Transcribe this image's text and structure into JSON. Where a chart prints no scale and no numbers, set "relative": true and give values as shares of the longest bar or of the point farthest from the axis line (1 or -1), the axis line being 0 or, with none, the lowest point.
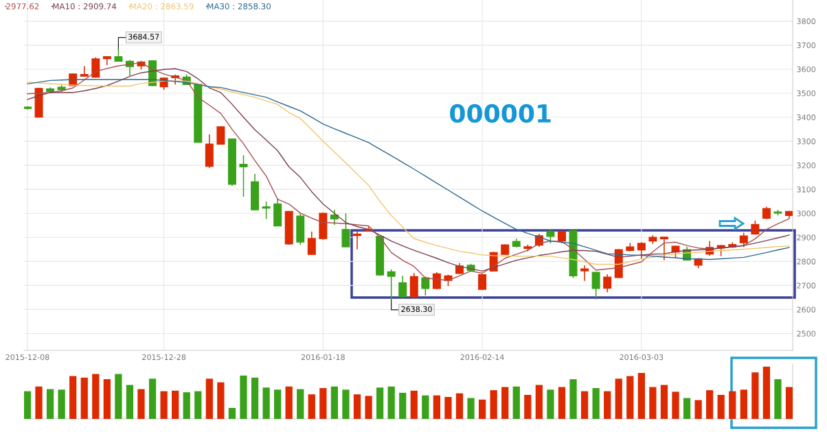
{
  "chart_data": [
    {
      "type": "candlestick",
      "categories": [
        "2015-12-08",
        null,
        null,
        null,
        null,
        null,
        null,
        null,
        null,
        null,
        null,
        null,
        "2015-12-28",
        null,
        null,
        null,
        null,
        null,
        null,
        null,
        null,
        null,
        null,
        null,
        null,
        null,
        "2016-01-18",
        null,
        null,
        null,
        null,
        null,
        null,
        null,
        null,
        null,
        null,
        null,
        null,
        null,
        "2016-02-14",
        null,
        null,
        null,
        null,
        null,
        null,
        null,
        null,
        null,
        null,
        null,
        null,
        null,
        "2016-03-03",
        null,
        null,
        null,
        null,
        null,
        null,
        null,
        null,
        null,
        null,
        null,
        null,
        null
      ],
      "ohlc": [
        [
          3442,
          3446,
          3432,
          3436
        ],
        [
          3401,
          3522,
          3399,
          3520
        ],
        [
          3518,
          3524,
          3500,
          3508
        ],
        [
          3525,
          3534,
          3506,
          3515
        ],
        [
          3532,
          3582,
          3530,
          3580
        ],
        [
          3571,
          3613,
          3570,
          3578
        ],
        [
          3567,
          3649,
          3565,
          3643
        ],
        [
          3644,
          3653,
          3617,
          3652
        ],
        [
          3652,
          3684.57,
          3631,
          3633
        ],
        [
          3633,
          3638,
          3572,
          3611
        ],
        [
          3614,
          3635,
          3599,
          3630
        ],
        [
          3635,
          3637,
          3530,
          3532
        ],
        [
          3527,
          3565,
          3514,
          3563
        ],
        [
          3565,
          3578,
          3536,
          3572
        ],
        [
          3567,
          3578,
          3535,
          3536
        ],
        [
          3538,
          3540,
          3295,
          3296
        ],
        [
          3196,
          3329,
          3189,
          3288
        ],
        [
          3288,
          3362,
          3287,
          3360
        ],
        [
          3310,
          3312,
          3115,
          3121
        ],
        [
          3204,
          3242,
          3069,
          3194
        ],
        [
          3131,
          3165,
          3014,
          3015
        ],
        [
          3027,
          3049,
          2977,
          3022
        ],
        [
          3039,
          3061,
          2947,
          2948
        ],
        [
          2873,
          3010,
          2870,
          3008
        ],
        [
          2989,
          3002,
          2870,
          2881
        ],
        [
          2829,
          2924,
          2827,
          2895
        ],
        [
          2895,
          3003,
          2890,
          3000
        ],
        [
          2993,
          3015,
          2952,
          2977
        ],
        [
          2933,
          3000,
          2860,
          2861
        ],
        [
          2908,
          2925,
          2850,
          2914
        ],
        [
          2929,
          2945,
          2926,
          2934
        ],
        [
          2904,
          2906,
          2740,
          2744
        ],
        [
          2757,
          2767,
          2638.3,
          2738
        ],
        [
          2711,
          2740,
          2650,
          2653
        ],
        [
          2652,
          2752,
          2650,
          2737
        ],
        [
          2732,
          2737,
          2658,
          2687
        ],
        [
          2687,
          2755,
          2685,
          2748
        ],
        [
          2721,
          2745,
          2697,
          2740
        ],
        [
          2750,
          2793,
          2748,
          2781
        ],
        [
          2784,
          2790,
          2760,
          2762
        ],
        [
          2684,
          2748,
          2682,
          2745
        ],
        [
          2760,
          2840,
          2758,
          2837
        ],
        [
          2829,
          2871,
          2827,
          2869
        ],
        [
          2883,
          2895,
          2858,
          2863
        ],
        [
          2854,
          2870,
          2842,
          2861
        ],
        [
          2868,
          2915,
          2861,
          2907
        ],
        [
          2925,
          2932,
          2875,
          2904
        ],
        [
          2885,
          2935,
          2875,
          2924
        ],
        [
          2928,
          2930,
          2731,
          2740
        ],
        [
          2761,
          2784,
          2719,
          2769
        ],
        [
          2755,
          2757,
          2642,
          2687
        ],
        [
          2689,
          2747,
          2671,
          2735
        ],
        [
          2733,
          2851,
          2731,
          2849
        ],
        [
          2846,
          2877,
          2842,
          2860
        ],
        [
          2848,
          2880,
          2810,
          2875
        ],
        [
          2885,
          2909,
          2873,
          2900
        ],
        [
          2894,
          2903,
          2805,
          2901
        ],
        [
          2839,
          2866,
          2815,
          2863
        ],
        [
          2849,
          2861,
          2803,
          2806
        ],
        [
          2784,
          2813,
          2772,
          2811
        ],
        [
          2831,
          2885,
          2824,
          2858
        ],
        [
          2856,
          2868,
          2822,
          2866
        ],
        [
          2860,
          2880,
          2856,
          2870
        ],
        [
          2878,
          2919,
          2860,
          2906
        ],
        [
          2914,
          2970,
          2912,
          2954
        ],
        [
          2980,
          3028,
          2976,
          3020
        ],
        [
          3006,
          3015,
          2991,
          3001
        ],
        [
          2991,
          3010,
          2980,
          3008
        ]
      ],
      "colors": [
        "#3aa21a",
        "#dd2a00",
        "#3aa21a",
        "#3aa21a",
        "#dd2a00",
        "#dd2a00",
        "#dd2a00",
        "#dd2a00",
        "#3aa21a",
        "#3aa21a",
        "#dd2a00",
        "#3aa21a",
        "#dd2a00",
        "#dd2a00",
        "#3aa21a",
        "#3aa21a",
        "#dd2a00",
        "#dd2a00",
        "#3aa21a",
        "#3aa21a",
        "#3aa21a",
        "#3aa21a",
        "#3aa21a",
        "#dd2a00",
        "#3aa21a",
        "#dd2a00",
        "#dd2a00",
        "#3aa21a",
        "#3aa21a",
        "#dd2a00",
        "#dd2a00",
        "#3aa21a",
        "#3aa21a",
        "#3aa21a",
        "#dd2a00",
        "#3aa21a",
        "#dd2a00",
        "#dd2a00",
        "#dd2a00",
        "#3aa21a",
        "#dd2a00",
        "#dd2a00",
        "#dd2a00",
        "#3aa21a",
        "#dd2a00",
        "#dd2a00",
        "#3aa21a",
        "#dd2a00",
        "#3aa21a",
        "#dd2a00",
        "#3aa21a",
        "#dd2a00",
        "#dd2a00",
        "#dd2a00",
        "#dd2a00",
        "#dd2a00",
        "#dd2a00",
        "#dd2a00",
        "#3aa21a",
        "#dd2a00",
        "#dd2a00",
        "#dd2a00",
        "#dd2a00",
        "#dd2a00",
        "#dd2a00",
        "#dd2a00",
        "#3aa21a",
        "#dd2a00"
      ],
      "series": [
        {
          "type": "line",
          "name": "2977.62",
          "color": "#a8504e",
          "values": [
            3498,
            3500,
            3503,
            3510,
            3522,
            3555,
            3590,
            3603,
            3614,
            3620,
            3628,
            3599,
            3580,
            3566,
            3553,
            3483,
            3450,
            3416,
            3350,
            3290,
            3220,
            3155,
            3059,
            3039,
            3001,
            2980,
            2962,
            2960,
            2957,
            2952,
            2948,
            2900,
            2837,
            2805,
            2779,
            2731,
            2726,
            2721,
            2740,
            2760,
            2751,
            2780,
            2813,
            2830,
            2846,
            2875,
            2885,
            2882,
            2851,
            2808,
            2764,
            2769,
            2774,
            2786,
            2798,
            2840,
            2877,
            2880,
            2866,
            2856,
            2851,
            2856,
            2861,
            2866,
            2894,
            2933,
            2957,
            2978
          ]
        },
        {
          "type": "line",
          "name": "MA10 : 2909.74",
          "color": "#7b3f52",
          "values": [
            3474,
            3490,
            3503,
            3503,
            3503,
            3510,
            3520,
            3532,
            3550,
            3570,
            3585,
            3592,
            3599,
            3602,
            3590,
            3560,
            3522,
            3503,
            3454,
            3400,
            3348,
            3305,
            3261,
            3194,
            3150,
            3090,
            3039,
            3000,
            2962,
            2945,
            2933,
            2910,
            2885,
            2865,
            2846,
            2830,
            2813,
            2795,
            2779,
            2770,
            2760,
            2775,
            2790,
            2805,
            2815,
            2825,
            2832,
            2840,
            2846,
            2845,
            2842,
            2830,
            2817,
            2822,
            2827,
            2830,
            2832,
            2840,
            2846,
            2848,
            2851,
            2856,
            2861,
            2866,
            2876,
            2887,
            2898,
            2910
          ]
        },
        {
          "type": "line",
          "name": "MA20 : 2863.59",
          "color": "#f2c46d",
          "values": [
            3546,
            3543,
            3540,
            3537,
            3534,
            3532,
            3531,
            3530,
            3530,
            3530,
            3541,
            3545,
            3551,
            3551,
            3550,
            3540,
            3527,
            3517,
            3505,
            3494,
            3483,
            3468,
            3454,
            3420,
            3395,
            3348,
            3300,
            3255,
            3210,
            3163,
            3117,
            3050,
            2991,
            2943,
            2895,
            2880,
            2866,
            2854,
            2842,
            2835,
            2827,
            2824,
            2822,
            2822,
            2822,
            2822,
            2822,
            2815,
            2808,
            2798,
            2788,
            2788,
            2788,
            2799,
            2810,
            2818,
            2827,
            2831,
            2835,
            2838,
            2842,
            2845,
            2848,
            2851,
            2854,
            2858,
            2862,
            2864
          ]
        },
        {
          "type": "line",
          "name": "MA30 : 2858.30",
          "color": "#2b6a92",
          "values": [
            3539,
            3546,
            3553,
            3555,
            3557,
            3557,
            3557,
            3557,
            3557,
            3557,
            3557,
            3557,
            3553,
            3549,
            3545,
            3536,
            3527,
            3524,
            3513,
            3503,
            3493,
            3483,
            3464,
            3445,
            3427,
            3400,
            3372,
            3352,
            3333,
            3314,
            3295,
            3267,
            3240,
            3212,
            3184,
            3155,
            3126,
            3097,
            3068,
            3039,
            3010,
            2984,
            2958,
            2933,
            2917,
            2901,
            2885,
            2880,
            2875,
            2861,
            2846,
            2832,
            2830,
            2827,
            2825,
            2822,
            2818,
            2815,
            2811,
            2810,
            2808,
            2811,
            2814,
            2817,
            2827,
            2837,
            2848,
            2858
          ]
        }
      ],
      "ylim": [
        2430,
        3888
      ],
      "yticks": [
        2500,
        2600,
        2700,
        2800,
        2900,
        3000,
        3100,
        3200,
        3300,
        3400,
        3500,
        3600,
        3700,
        3800
      ],
      "grid": true,
      "legend": "top left",
      "annotations": [
        "000001",
        "3684.57",
        "2638.30"
      ]
    },
    {
      "type": "bar",
      "relative": true,
      "categories": [
        null,
        null,
        null,
        null,
        null,
        null,
        null,
        null,
        null,
        null,
        null,
        null,
        null,
        null,
        null,
        null,
        null,
        null,
        null,
        null,
        null,
        null,
        null,
        null,
        null,
        null,
        null,
        null,
        null,
        null,
        null,
        null,
        null,
        null,
        null,
        null,
        null,
        null,
        null,
        null,
        null,
        null,
        null,
        null,
        null,
        null,
        null,
        null,
        null,
        null,
        null,
        null,
        null,
        null,
        null,
        null,
        null,
        null,
        null,
        null,
        null,
        null,
        null,
        null,
        null,
        null,
        null,
        null
      ],
      "values": [
        0.53,
        0.62,
        0.57,
        0.56,
        0.82,
        0.79,
        0.86,
        0.76,
        0.86,
        0.65,
        0.57,
        0.77,
        0.53,
        0.54,
        0.51,
        0.53,
        0.77,
        0.7,
        0.21,
        0.83,
        0.79,
        0.6,
        0.56,
        0.62,
        0.57,
        0.47,
        0.59,
        0.62,
        0.56,
        0.47,
        0.44,
        0.6,
        0.62,
        0.5,
        0.54,
        0.45,
        0.45,
        0.42,
        0.49,
        0.4,
        0.37,
        0.55,
        0.61,
        0.62,
        0.46,
        0.65,
        0.56,
        0.61,
        0.76,
        0.53,
        0.59,
        0.53,
        0.77,
        0.82,
        0.88,
        0.61,
        0.65,
        0.52,
        0.4,
        0.36,
        0.55,
        0.46,
        0.53,
        0.56,
        0.89,
        1,
        0.76,
        0.61
      ],
      "colors": [
        "#3aa21a",
        "#dd2a00",
        "#3aa21a",
        "#3aa21a",
        "#dd2a00",
        "#dd2a00",
        "#dd2a00",
        "#dd2a00",
        "#3aa21a",
        "#3aa21a",
        "#dd2a00",
        "#3aa21a",
        "#dd2a00",
        "#dd2a00",
        "#3aa21a",
        "#3aa21a",
        "#dd2a00",
        "#dd2a00",
        "#3aa21a",
        "#3aa21a",
        "#3aa21a",
        "#3aa21a",
        "#3aa21a",
        "#dd2a00",
        "#3aa21a",
        "#dd2a00",
        "#dd2a00",
        "#3aa21a",
        "#3aa21a",
        "#dd2a00",
        "#dd2a00",
        "#3aa21a",
        "#3aa21a",
        "#3aa21a",
        "#dd2a00",
        "#3aa21a",
        "#dd2a00",
        "#dd2a00",
        "#dd2a00",
        "#3aa21a",
        "#dd2a00",
        "#dd2a00",
        "#dd2a00",
        "#3aa21a",
        "#dd2a00",
        "#dd2a00",
        "#3aa21a",
        "#dd2a00",
        "#3aa21a",
        "#dd2a00",
        "#3aa21a",
        "#dd2a00",
        "#dd2a00",
        "#dd2a00",
        "#dd2a00",
        "#dd2a00",
        "#dd2a00",
        "#dd2a00",
        "#3aa21a",
        "#dd2a00",
        "#dd2a00",
        "#dd2a00",
        "#dd2a00",
        "#dd2a00",
        "#dd2a00",
        "#dd2a00",
        "#3aa21a",
        "#dd2a00"
      ]
    }
  ]
}
